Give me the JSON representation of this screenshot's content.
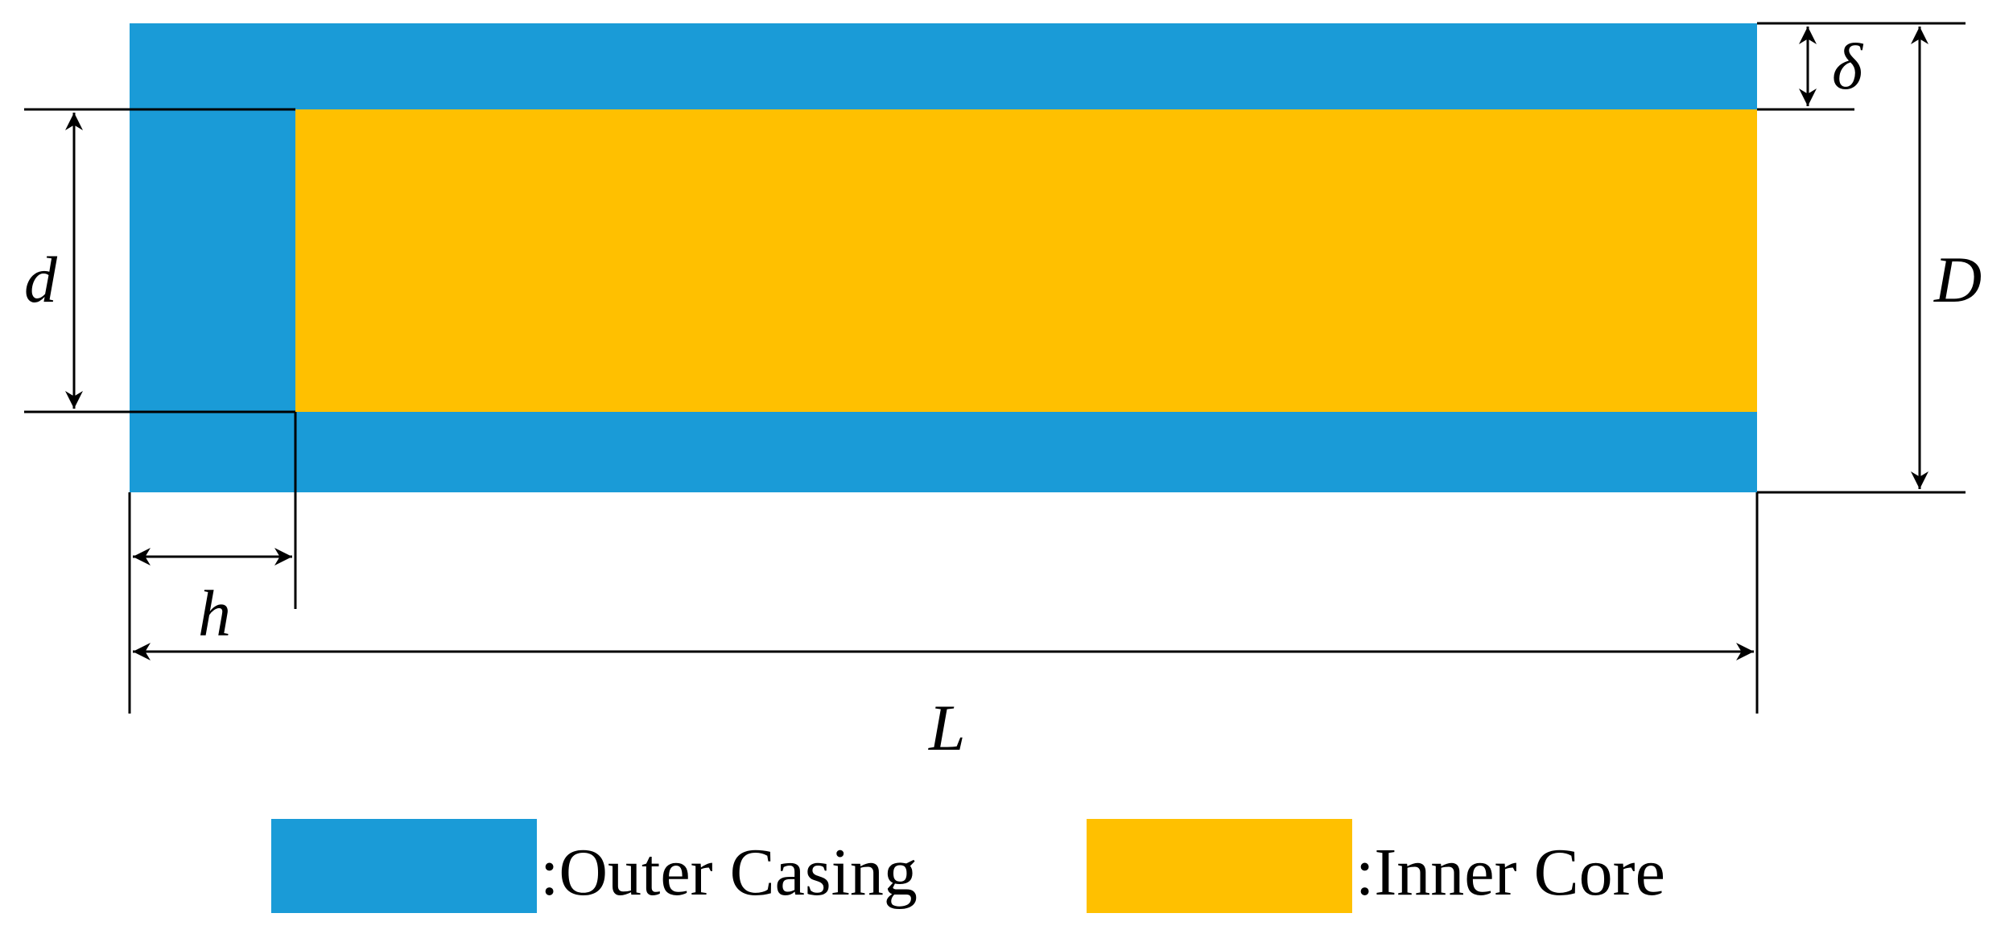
{
  "colors": {
    "outer_casing": "#1A9BD7",
    "inner_core": "#FFC000",
    "lines": "#000000"
  },
  "dimensions": {
    "delta": "δ",
    "D": "D",
    "d": "d",
    "h": "h",
    "L": "L"
  },
  "legend": {
    "outer_casing_label": ":Outer Casing",
    "inner_core_label": ":Inner Core"
  }
}
